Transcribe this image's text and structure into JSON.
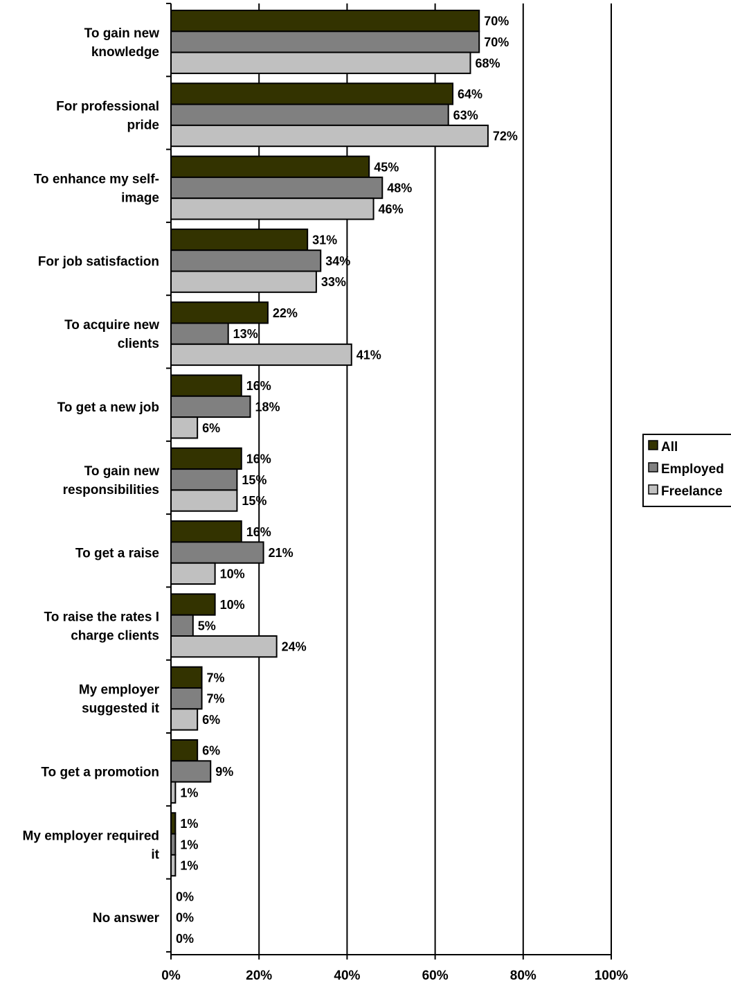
{
  "chart_data": {
    "type": "bar",
    "orientation": "horizontal",
    "title": "",
    "xlabel": "",
    "ylabel": "",
    "xlim": [
      0,
      100
    ],
    "x_ticks": [
      "0%",
      "20%",
      "40%",
      "60%",
      "80%",
      "100%"
    ],
    "grid": true,
    "legend_position": "right",
    "colors": {
      "All": "#333300",
      "Employed": "#808080",
      "Freelance": "#c0c0c0"
    },
    "categories": [
      [
        "To gain new",
        "knowledge"
      ],
      [
        "For professional",
        "pride"
      ],
      [
        "To enhance my self-",
        "image"
      ],
      [
        "For job satisfaction"
      ],
      [
        "To acquire new",
        "clients"
      ],
      [
        "To get a new job"
      ],
      [
        "To gain new",
        "responsibilities"
      ],
      [
        "To get a raise"
      ],
      [
        "To raise the rates I",
        "charge clients"
      ],
      [
        "My employer",
        "suggested it"
      ],
      [
        "To get a promotion"
      ],
      [
        "My employer required",
        "it"
      ],
      [
        "No answer"
      ]
    ],
    "series": [
      {
        "name": "All",
        "values": [
          70,
          64,
          45,
          31,
          22,
          16,
          16,
          16,
          10,
          7,
          6,
          1,
          0
        ]
      },
      {
        "name": "Employed",
        "values": [
          70,
          63,
          48,
          34,
          13,
          18,
          15,
          21,
          5,
          7,
          9,
          1,
          0
        ]
      },
      {
        "name": "Freelance",
        "values": [
          68,
          72,
          46,
          33,
          41,
          6,
          15,
          10,
          24,
          6,
          1,
          1,
          0
        ]
      }
    ],
    "value_suffix": "%"
  }
}
